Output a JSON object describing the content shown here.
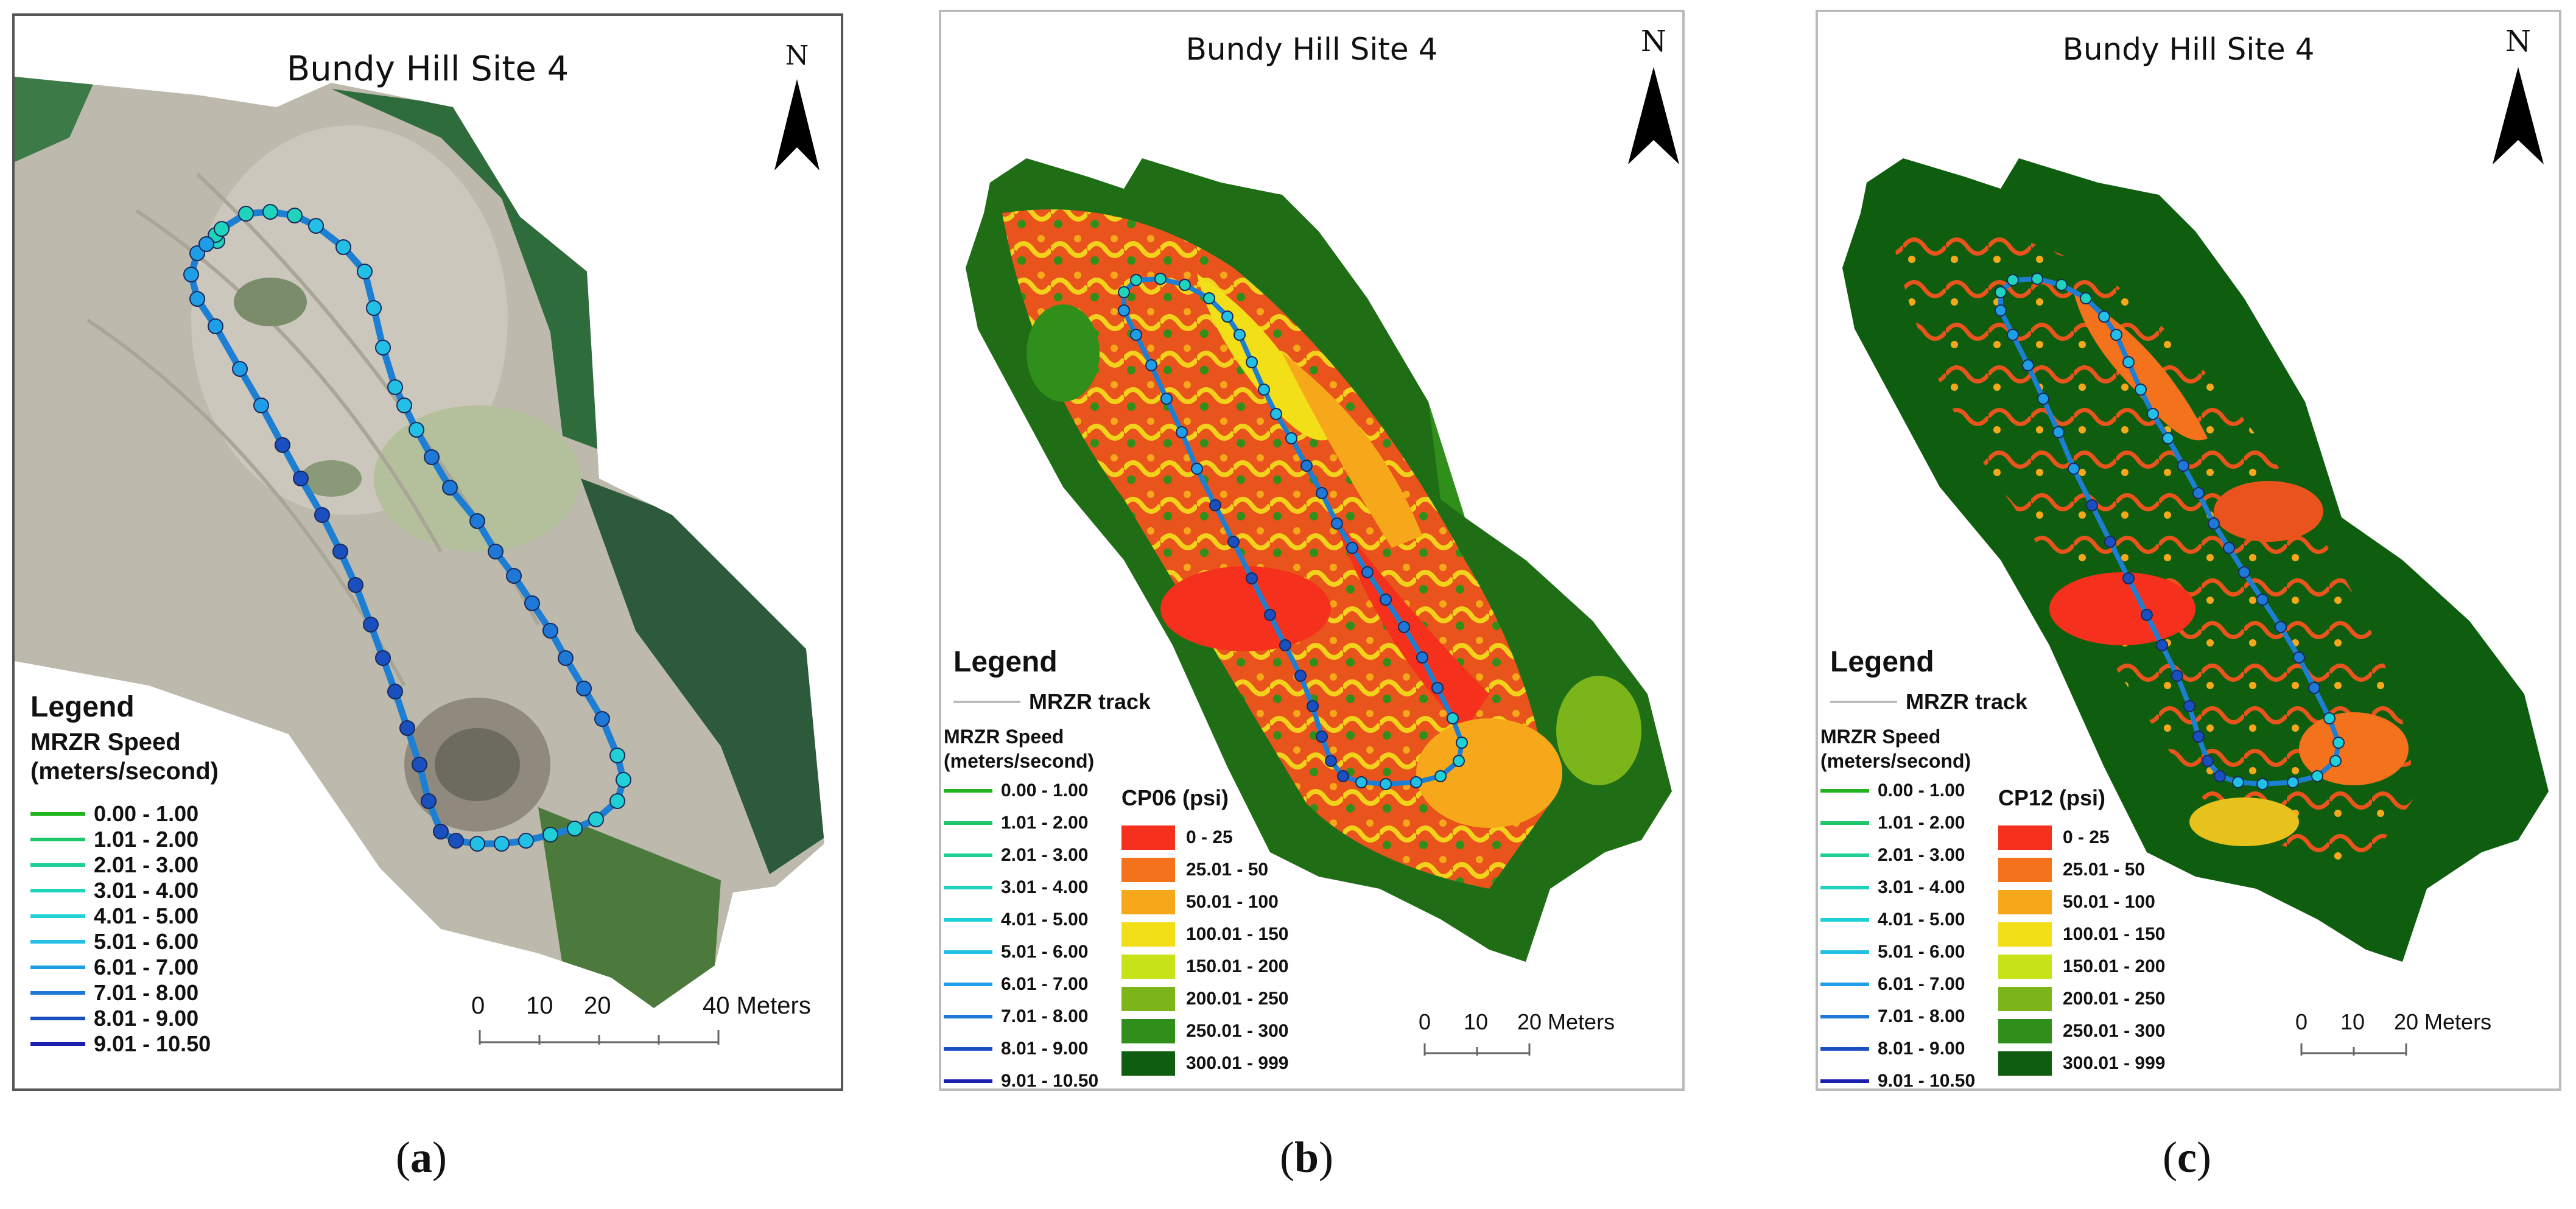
{
  "captions": [
    "a",
    "b",
    "c"
  ],
  "panels": [
    {
      "id": "a",
      "title": "Bundy Hill Site 4",
      "north": "N",
      "legend_title": "Legend",
      "speed_title": "MRZR Speed",
      "speed_units": "(meters/second)",
      "scale_labels": [
        "0",
        "10",
        "20",
        "40 Meters"
      ]
    },
    {
      "id": "b",
      "title": "Bundy Hill Site 4",
      "north": "N",
      "legend_title": "Legend",
      "track_label": "MRZR track",
      "speed_title": "MRZR Speed",
      "speed_units": "(meters/second)",
      "cp_title": "CP06 (psi)",
      "scale_labels": [
        "0",
        "10",
        "20 Meters"
      ]
    },
    {
      "id": "c",
      "title": "Bundy Hill Site 4",
      "north": "N",
      "legend_title": "Legend",
      "track_label": "MRZR track",
      "speed_title": "MRZR Speed",
      "speed_units": "(meters/second)",
      "cp_title": "CP12 (psi)",
      "scale_labels": [
        "0",
        "10",
        "20 Meters"
      ]
    }
  ],
  "speed_classes": [
    {
      "label": "0.00 - 1.00",
      "color": "#22b41e"
    },
    {
      "label": "1.01 - 2.00",
      "color": "#1ec76a"
    },
    {
      "label": "2.01 - 3.00",
      "color": "#1ecf97"
    },
    {
      "label": "3.01 - 4.00",
      "color": "#1fd3bd"
    },
    {
      "label": "4.01 - 5.00",
      "color": "#1fd0d6"
    },
    {
      "label": "5.01 - 6.00",
      "color": "#22bfe6"
    },
    {
      "label": "6.01 - 7.00",
      "color": "#1e9ee8"
    },
    {
      "label": "7.01 - 8.00",
      "color": "#1d78d8"
    },
    {
      "label": "8.01 - 9.00",
      "color": "#1a4fc0"
    },
    {
      "label": "9.01 - 10.50",
      "color": "#1a1fb0"
    }
  ],
  "cp_classes": [
    {
      "label": "0 - 25",
      "color": "#f5301c"
    },
    {
      "label": "25.01 - 50",
      "color": "#f5721c"
    },
    {
      "label": "50.01 - 100",
      "color": "#f7a81a"
    },
    {
      "label": "100.01 - 150",
      "color": "#f3df18"
    },
    {
      "label": "150.01 - 200",
      "color": "#c8e21a"
    },
    {
      "label": "200.01 - 250",
      "color": "#7cb51a"
    },
    {
      "label": "250.01 - 300",
      "color": "#2f8f1a"
    },
    {
      "label": "300.01 - 999",
      "color": "#0f5e0f"
    }
  ],
  "track_color": "#bbbbbb"
}
